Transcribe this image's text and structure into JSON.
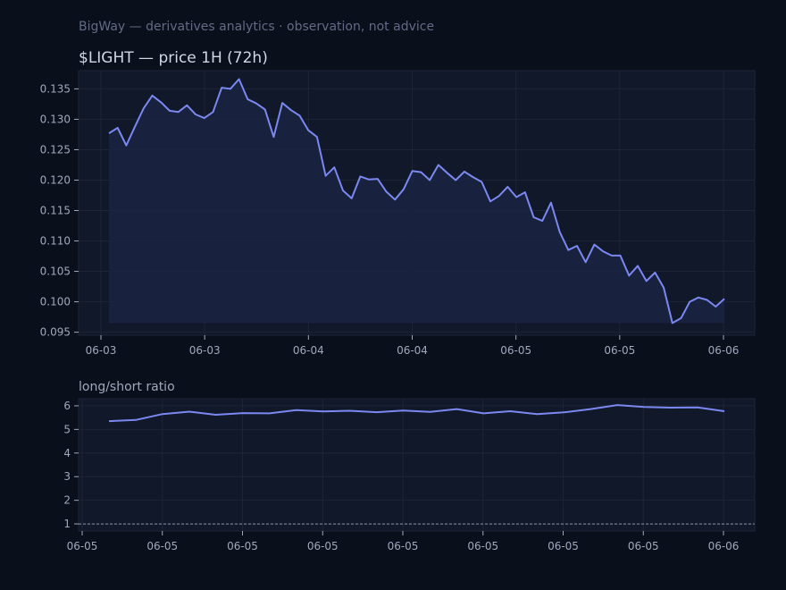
{
  "header": {
    "text": "BigWay — derivatives analytics · observation, not advice"
  },
  "colors": {
    "background": "#0a0f1c",
    "panel": "#111829",
    "line": "#7b88f0",
    "fill": "#1a2342",
    "grid": "#1c2436",
    "tick_text": "#a0a8bc",
    "reference": "#8a93a8"
  },
  "chart_data": [
    {
      "type": "area",
      "title": "$LIGHT — price 1H (72h)",
      "xlabel": "",
      "ylabel": "",
      "ylim": [
        0.0945,
        0.138
      ],
      "yticks": [
        0.095,
        0.1,
        0.105,
        0.11,
        0.115,
        0.12,
        0.125,
        0.13,
        0.135
      ],
      "xticks": [
        "06-03",
        "06-03",
        "06-04",
        "06-04",
        "06-05",
        "06-05",
        "06-06"
      ],
      "grid": true,
      "series": [
        {
          "values": [
            0.1277,
            0.1286,
            0.1257,
            0.1288,
            0.1318,
            0.1339,
            0.1328,
            0.1314,
            0.1312,
            0.1323,
            0.1308,
            0.1302,
            0.1312,
            0.1352,
            0.135,
            0.1366,
            0.1333,
            0.1326,
            0.1316,
            0.1271,
            0.1327,
            0.1315,
            0.1306,
            0.1282,
            0.1271,
            0.1207,
            0.1221,
            0.1183,
            0.117,
            0.1206,
            0.1201,
            0.1202,
            0.1181,
            0.1168,
            0.1185,
            0.1215,
            0.1213,
            0.12,
            0.1225,
            0.1212,
            0.12,
            0.1214,
            0.1205,
            0.1197,
            0.1165,
            0.1174,
            0.1189,
            0.1172,
            0.118,
            0.1139,
            0.1133,
            0.1163,
            0.1115,
            0.1085,
            0.1092,
            0.1065,
            0.1094,
            0.1083,
            0.1076,
            0.1076,
            0.1043,
            0.1059,
            0.1034,
            0.1048,
            0.1023,
            0.0965,
            0.0973,
            0.1,
            0.1007,
            0.1003,
            0.0992,
            0.1005
          ]
        }
      ]
    },
    {
      "type": "line",
      "title": "long/short ratio",
      "xlabel": "",
      "ylabel": "",
      "ylim": [
        0.7,
        6.3
      ],
      "yticks": [
        1,
        2,
        3,
        4,
        5,
        6
      ],
      "xticks": [
        "06-05",
        "06-05",
        "06-05",
        "06-05",
        "06-05",
        "06-05",
        "06-05",
        "06-05",
        "06-06"
      ],
      "grid": true,
      "reference_line": 1,
      "series": [
        {
          "values": [
            5.35,
            5.4,
            5.65,
            5.75,
            5.62,
            5.69,
            5.68,
            5.82,
            5.76,
            5.79,
            5.73,
            5.8,
            5.74,
            5.86,
            5.68,
            5.77,
            5.65,
            5.72,
            5.86,
            6.03,
            5.95,
            5.92,
            5.93,
            5.77
          ]
        }
      ]
    }
  ]
}
